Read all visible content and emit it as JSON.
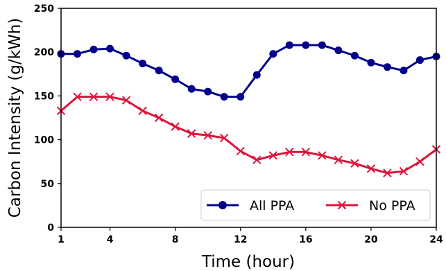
{
  "chart_data": {
    "type": "line",
    "xlabel": "Time (hour)",
    "ylabel": "Carbon Intensity (g/kWh)",
    "xlim": [
      1,
      24
    ],
    "ylim": [
      0,
      250
    ],
    "xticks": [
      1,
      4,
      8,
      12,
      16,
      20,
      24
    ],
    "yticks": [
      0,
      50,
      100,
      150,
      200,
      250
    ],
    "grid": false,
    "legend_position": "lower-right",
    "x": [
      1,
      2,
      3,
      4,
      5,
      6,
      7,
      8,
      9,
      10,
      11,
      12,
      13,
      14,
      15,
      16,
      17,
      18,
      19,
      20,
      21,
      22,
      23,
      24
    ],
    "series": [
      {
        "name": "All PPA",
        "color": "#00008B",
        "marker": "circle",
        "values": [
          198,
          198,
          203,
          204,
          196,
          187,
          179,
          169,
          158,
          155,
          149,
          149,
          174,
          198,
          208,
          208,
          208,
          202,
          196,
          188,
          183,
          179,
          191,
          195
        ]
      },
      {
        "name": "No PPA",
        "color": "#DC143C",
        "marker": "x",
        "values": [
          133,
          149,
          149,
          149,
          145,
          133,
          125,
          115,
          107,
          105,
          102,
          87,
          77,
          82,
          86,
          86,
          82,
          77,
          73,
          67,
          62,
          64,
          75,
          89
        ]
      }
    ]
  }
}
